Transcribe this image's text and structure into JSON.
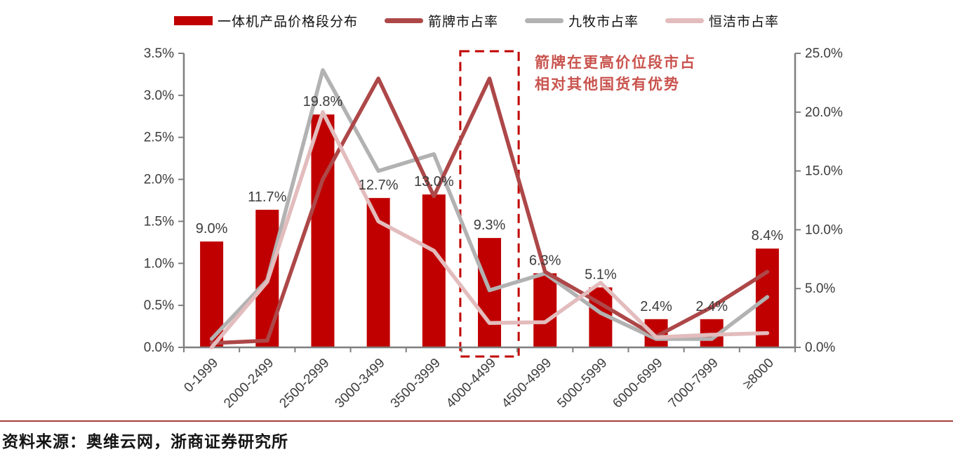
{
  "chart_data": {
    "type": "bar+line combo",
    "categories": [
      "0-1999",
      "2000-2499",
      "2500-2999",
      "3000-3499",
      "3500-3999",
      "4000-4499",
      "4500-4999",
      "5000-5999",
      "6000-6999",
      "7000-7999",
      "≥8000"
    ],
    "bar_series": {
      "name": "一体机产品价格段分布",
      "axis": "right",
      "color": "#c00000",
      "values": [
        9.0,
        11.7,
        19.8,
        12.7,
        13.0,
        9.3,
        6.3,
        5.1,
        2.4,
        2.4,
        8.4
      ],
      "labels": [
        "9.0%",
        "11.7%",
        "19.8%",
        "12.7%",
        "13.0%",
        "9.3%",
        "6.3%",
        "5.1%",
        "2.4%",
        "2.4%",
        "8.4%"
      ]
    },
    "line_series": [
      {
        "name": "箭牌市占率",
        "axis": "left",
        "color": "#ad4748",
        "values": [
          0.05,
          0.08,
          2.0,
          3.2,
          1.8,
          3.2,
          0.9,
          0.52,
          0.13,
          0.48,
          0.9
        ]
      },
      {
        "name": "九牧市占率",
        "axis": "left",
        "color": "#b2b2b2",
        "values": [
          0.1,
          0.8,
          3.3,
          2.1,
          2.3,
          0.68,
          0.88,
          0.41,
          0.1,
          0.1,
          0.6
        ]
      },
      {
        "name": "恒洁市占率",
        "axis": "left",
        "color": "#e3bcbd",
        "values": [
          0.0,
          0.78,
          2.8,
          1.5,
          1.15,
          0.29,
          0.3,
          0.77,
          0.12,
          0.15,
          0.17
        ]
      }
    ],
    "left_axis": {
      "min": 0,
      "max": 3.5,
      "step": 0.5,
      "tick_labels": [
        "0.0%",
        "0.5%",
        "1.0%",
        "1.5%",
        "2.0%",
        "2.5%",
        "3.0%",
        "3.5%"
      ]
    },
    "right_axis": {
      "min": 0,
      "max": 25,
      "step": 5,
      "tick_labels": [
        "0.0%",
        "5.0%",
        "10.0%",
        "15.0%",
        "20.0%",
        "25.0%"
      ]
    },
    "highlight": {
      "category": "4000-4499",
      "category_index": 5,
      "box_color": "#c00000"
    },
    "legend_position": "top",
    "gridlines": false,
    "title": ""
  },
  "annotation": {
    "line1": "箭牌在更高价位段市占",
    "line2": "相对其他国货有优势",
    "color": "#c9534e"
  },
  "source": {
    "text": "资料来源：奥维云网，浙商证券研究所"
  },
  "colors": {
    "axis": "#7f7f7f",
    "tick_label": "#3c3c3c",
    "bar_label": "#3c3c3c",
    "divider": "#a6403a",
    "background": "#ffffff"
  }
}
